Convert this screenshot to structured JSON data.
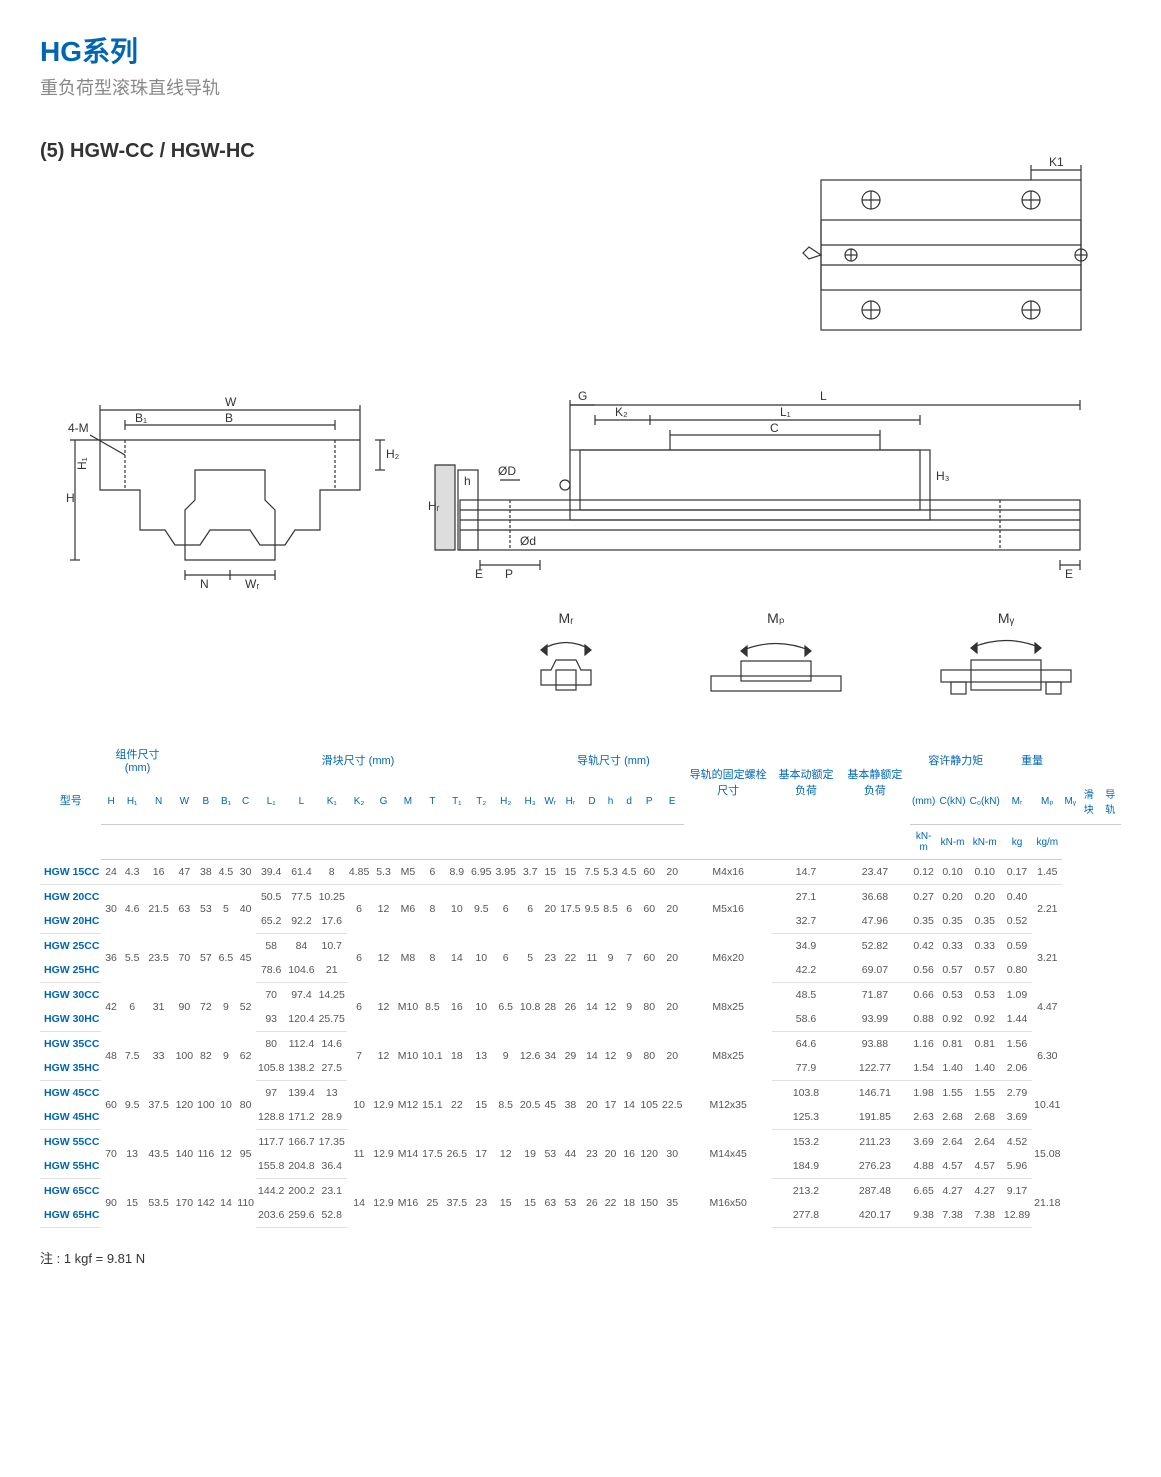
{
  "header": {
    "series_title": "HG系列",
    "series_sub": "重负荷型滚珠直线导轨",
    "section": "(5) HGW-CC / HGW-HC"
  },
  "diagram_labels": {
    "top_view": {
      "K1": "K1"
    },
    "front_view": {
      "W": "W",
      "B": "B",
      "B1": "B₁",
      "H": "H",
      "H1": "H₁",
      "H2": "H₂",
      "N": "N",
      "WR": "Wᵣ",
      "4M": "4-M",
      "HR": "Hᵣ",
      "h": "h"
    },
    "side_view": {
      "G": "G",
      "L": "L",
      "K2": "K₂",
      "L1": "L₁",
      "C": "C",
      "OD": "ØD",
      "Od": "Ød",
      "P": "P",
      "E": "E",
      "H3": "H₃"
    },
    "moments": {
      "MR": "Mᵣ",
      "MP": "Mₚ",
      "MY": "Mᵧ"
    }
  },
  "table": {
    "group_headers": {
      "model": "型号",
      "assembly": "组件尺寸 (mm)",
      "block": "滑块尺寸 (mm)",
      "rail": "导轨尺寸 (mm)",
      "bolt": "导轨的固定螺栓尺寸",
      "dyn": "基本动额定负荷",
      "stat": "基本静额定负荷",
      "moment": "容许静力矩",
      "weight": "重量"
    },
    "col_headers": [
      "H",
      "H₁",
      "N",
      "W",
      "B",
      "B₁",
      "C",
      "L₁",
      "L",
      "K₁",
      "K₂",
      "G",
      "M",
      "T",
      "T₁",
      "T₂",
      "H₂",
      "H₃",
      "Wᵣ",
      "Hᵣ",
      "D",
      "h",
      "d",
      "P",
      "E",
      "(mm)",
      "C(kN)",
      "C₀(kN)",
      "Mᵣ",
      "Mₚ",
      "Mᵧ",
      "滑块",
      "导轨"
    ],
    "unit_row": [
      "",
      "",
      "",
      "",
      "",
      "",
      "",
      "",
      "",
      "",
      "",
      "",
      "",
      "",
      "",
      "",
      "",
      "",
      "",
      "",
      "",
      "",
      "",
      "",
      "",
      "",
      "",
      "",
      "kN-m",
      "kN-m",
      "kN-m",
      "kg",
      "kg/m"
    ],
    "rows": [
      {
        "model": "HGW 15CC",
        "cells": [
          "24",
          "4.3",
          "16",
          "47",
          "38",
          "4.5",
          "30",
          "39.4",
          "61.4",
          "8",
          "4.85",
          "5.3",
          "M5",
          "6",
          "8.9",
          "6.95",
          "3.95",
          "3.7",
          "15",
          "15",
          "7.5",
          "5.3",
          "4.5",
          "60",
          "20",
          "M4x16",
          "14.7",
          "23.47",
          "0.12",
          "0.10",
          "0.10",
          "0.17",
          "1.45"
        ],
        "sep": true
      },
      {
        "model": "HGW 20CC",
        "cells": [
          "30",
          "4.6",
          "21.5",
          "63",
          "53",
          "5",
          "40",
          "50.5",
          "77.5",
          "10.25",
          "6",
          "12",
          "M6",
          "8",
          "10",
          "9.5",
          "6",
          "6",
          "20",
          "17.5",
          "9.5",
          "8.5",
          "6",
          "60",
          "20",
          "M5x16",
          "27.1",
          "36.68",
          "0.27",
          "0.20",
          "0.20",
          "0.40",
          "2.21"
        ],
        "share": [
          0,
          1,
          2,
          3,
          4,
          5,
          6,
          10,
          11,
          12,
          13,
          14,
          15,
          16,
          17,
          18,
          19,
          20,
          21,
          22,
          23,
          24,
          25,
          32
        ]
      },
      {
        "model": "HGW 20HC",
        "cells": [
          "",
          "",
          "",
          "",
          "",
          "",
          "",
          "65.2",
          "92.2",
          "17.6",
          "",
          "",
          "",
          "",
          "",
          "",
          "",
          "",
          "",
          "",
          "",
          "",
          "",
          "",
          "",
          "",
          "32.7",
          "47.96",
          "0.35",
          "0.35",
          "0.35",
          "0.52",
          ""
        ],
        "sep": true
      },
      {
        "model": "HGW 25CC",
        "cells": [
          "36",
          "5.5",
          "23.5",
          "70",
          "57",
          "6.5",
          "45",
          "58",
          "84",
          "10.7",
          "6",
          "12",
          "M8",
          "8",
          "14",
          "10",
          "6",
          "5",
          "23",
          "22",
          "11",
          "9",
          "7",
          "60",
          "20",
          "M6x20",
          "34.9",
          "52.82",
          "0.42",
          "0.33",
          "0.33",
          "0.59",
          "3.21"
        ],
        "share": [
          0,
          1,
          2,
          3,
          4,
          5,
          6,
          10,
          11,
          12,
          13,
          14,
          15,
          16,
          17,
          18,
          19,
          20,
          21,
          22,
          23,
          24,
          25,
          32
        ]
      },
      {
        "model": "HGW 25HC",
        "cells": [
          "",
          "",
          "",
          "",
          "",
          "",
          "",
          "78.6",
          "104.6",
          "21",
          "",
          "",
          "",
          "",
          "",
          "",
          "",
          "",
          "",
          "",
          "",
          "",
          "",
          "",
          "",
          "",
          "42.2",
          "69.07",
          "0.56",
          "0.57",
          "0.57",
          "0.80",
          ""
        ],
        "sep": true
      },
      {
        "model": "HGW 30CC",
        "cells": [
          "42",
          "6",
          "31",
          "90",
          "72",
          "9",
          "52",
          "70",
          "97.4",
          "14.25",
          "6",
          "12",
          "M10",
          "8.5",
          "16",
          "10",
          "6.5",
          "10.8",
          "28",
          "26",
          "14",
          "12",
          "9",
          "80",
          "20",
          "M8x25",
          "48.5",
          "71.87",
          "0.66",
          "0.53",
          "0.53",
          "1.09",
          "4.47"
        ],
        "share": [
          0,
          1,
          2,
          3,
          4,
          5,
          6,
          10,
          11,
          12,
          13,
          14,
          15,
          16,
          17,
          18,
          19,
          20,
          21,
          22,
          23,
          24,
          25,
          32
        ]
      },
      {
        "model": "HGW 30HC",
        "cells": [
          "",
          "",
          "",
          "",
          "",
          "",
          "",
          "93",
          "120.4",
          "25.75",
          "",
          "",
          "",
          "",
          "",
          "",
          "",
          "",
          "",
          "",
          "",
          "",
          "",
          "",
          "",
          "",
          "58.6",
          "93.99",
          "0.88",
          "0.92",
          "0.92",
          "1.44",
          ""
        ],
        "sep": true
      },
      {
        "model": "HGW 35CC",
        "cells": [
          "48",
          "7.5",
          "33",
          "100",
          "82",
          "9",
          "62",
          "80",
          "112.4",
          "14.6",
          "7",
          "12",
          "M10",
          "10.1",
          "18",
          "13",
          "9",
          "12.6",
          "34",
          "29",
          "14",
          "12",
          "9",
          "80",
          "20",
          "M8x25",
          "64.6",
          "93.88",
          "1.16",
          "0.81",
          "0.81",
          "1.56",
          "6.30"
        ],
        "share": [
          0,
          1,
          2,
          3,
          4,
          5,
          6,
          10,
          11,
          12,
          13,
          14,
          15,
          16,
          17,
          18,
          19,
          20,
          21,
          22,
          23,
          24,
          25,
          32
        ]
      },
      {
        "model": "HGW 35HC",
        "cells": [
          "",
          "",
          "",
          "",
          "",
          "",
          "",
          "105.8",
          "138.2",
          "27.5",
          "",
          "",
          "",
          "",
          "",
          "",
          "",
          "",
          "",
          "",
          "",
          "",
          "",
          "",
          "",
          "",
          "77.9",
          "122.77",
          "1.54",
          "1.40",
          "1.40",
          "2.06",
          ""
        ],
        "sep": true
      },
      {
        "model": "HGW 45CC",
        "cells": [
          "60",
          "9.5",
          "37.5",
          "120",
          "100",
          "10",
          "80",
          "97",
          "139.4",
          "13",
          "10",
          "12.9",
          "M12",
          "15.1",
          "22",
          "15",
          "8.5",
          "20.5",
          "45",
          "38",
          "20",
          "17",
          "14",
          "105",
          "22.5",
          "M12x35",
          "103.8",
          "146.71",
          "1.98",
          "1.55",
          "1.55",
          "2.79",
          "10.41"
        ],
        "share": [
          0,
          1,
          2,
          3,
          4,
          5,
          6,
          10,
          11,
          12,
          13,
          14,
          15,
          16,
          17,
          18,
          19,
          20,
          21,
          22,
          23,
          24,
          25,
          32
        ]
      },
      {
        "model": "HGW 45HC",
        "cells": [
          "",
          "",
          "",
          "",
          "",
          "",
          "",
          "128.8",
          "171.2",
          "28.9",
          "",
          "",
          "",
          "",
          "",
          "",
          "",
          "",
          "",
          "",
          "",
          "",
          "",
          "",
          "",
          "",
          "125.3",
          "191.85",
          "2.63",
          "2.68",
          "2.68",
          "3.69",
          ""
        ],
        "sep": true
      },
      {
        "model": "HGW 55CC",
        "cells": [
          "70",
          "13",
          "43.5",
          "140",
          "116",
          "12",
          "95",
          "117.7",
          "166.7",
          "17.35",
          "11",
          "12.9",
          "M14",
          "17.5",
          "26.5",
          "17",
          "12",
          "19",
          "53",
          "44",
          "23",
          "20",
          "16",
          "120",
          "30",
          "M14x45",
          "153.2",
          "211.23",
          "3.69",
          "2.64",
          "2.64",
          "4.52",
          "15.08"
        ],
        "share": [
          0,
          1,
          2,
          3,
          4,
          5,
          6,
          10,
          11,
          12,
          13,
          14,
          15,
          16,
          17,
          18,
          19,
          20,
          21,
          22,
          23,
          24,
          25,
          32
        ]
      },
      {
        "model": "HGW 55HC",
        "cells": [
          "",
          "",
          "",
          "",
          "",
          "",
          "",
          "155.8",
          "204.8",
          "36.4",
          "",
          "",
          "",
          "",
          "",
          "",
          "",
          "",
          "",
          "",
          "",
          "",
          "",
          "",
          "",
          "",
          "184.9",
          "276.23",
          "4.88",
          "4.57",
          "4.57",
          "5.96",
          ""
        ],
        "sep": true
      },
      {
        "model": "HGW 65CC",
        "cells": [
          "90",
          "15",
          "53.5",
          "170",
          "142",
          "14",
          "110",
          "144.2",
          "200.2",
          "23.1",
          "14",
          "12.9",
          "M16",
          "25",
          "37.5",
          "23",
          "15",
          "15",
          "63",
          "53",
          "26",
          "22",
          "18",
          "150",
          "35",
          "M16x50",
          "213.2",
          "287.48",
          "6.65",
          "4.27",
          "4.27",
          "9.17",
          "21.18"
        ],
        "share": [
          0,
          1,
          2,
          3,
          4,
          5,
          6,
          10,
          11,
          12,
          13,
          14,
          15,
          16,
          17,
          18,
          19,
          20,
          21,
          22,
          23,
          24,
          25,
          32
        ]
      },
      {
        "model": "HGW 65HC",
        "cells": [
          "",
          "",
          "",
          "",
          "",
          "",
          "",
          "203.6",
          "259.6",
          "52.8",
          "",
          "",
          "",
          "",
          "",
          "",
          "",
          "",
          "",
          "",
          "",
          "",
          "",
          "",
          "",
          "",
          "277.8",
          "420.17",
          "9.38",
          "7.38",
          "7.38",
          "12.89",
          ""
        ],
        "sep": true
      }
    ]
  },
  "footnote": "注 : 1 kgf = 9.81 N",
  "colors": {
    "brand": "#0066b3",
    "diagram_stroke": "#333333",
    "grid": "#e0e0e0",
    "text_muted": "#888888"
  }
}
